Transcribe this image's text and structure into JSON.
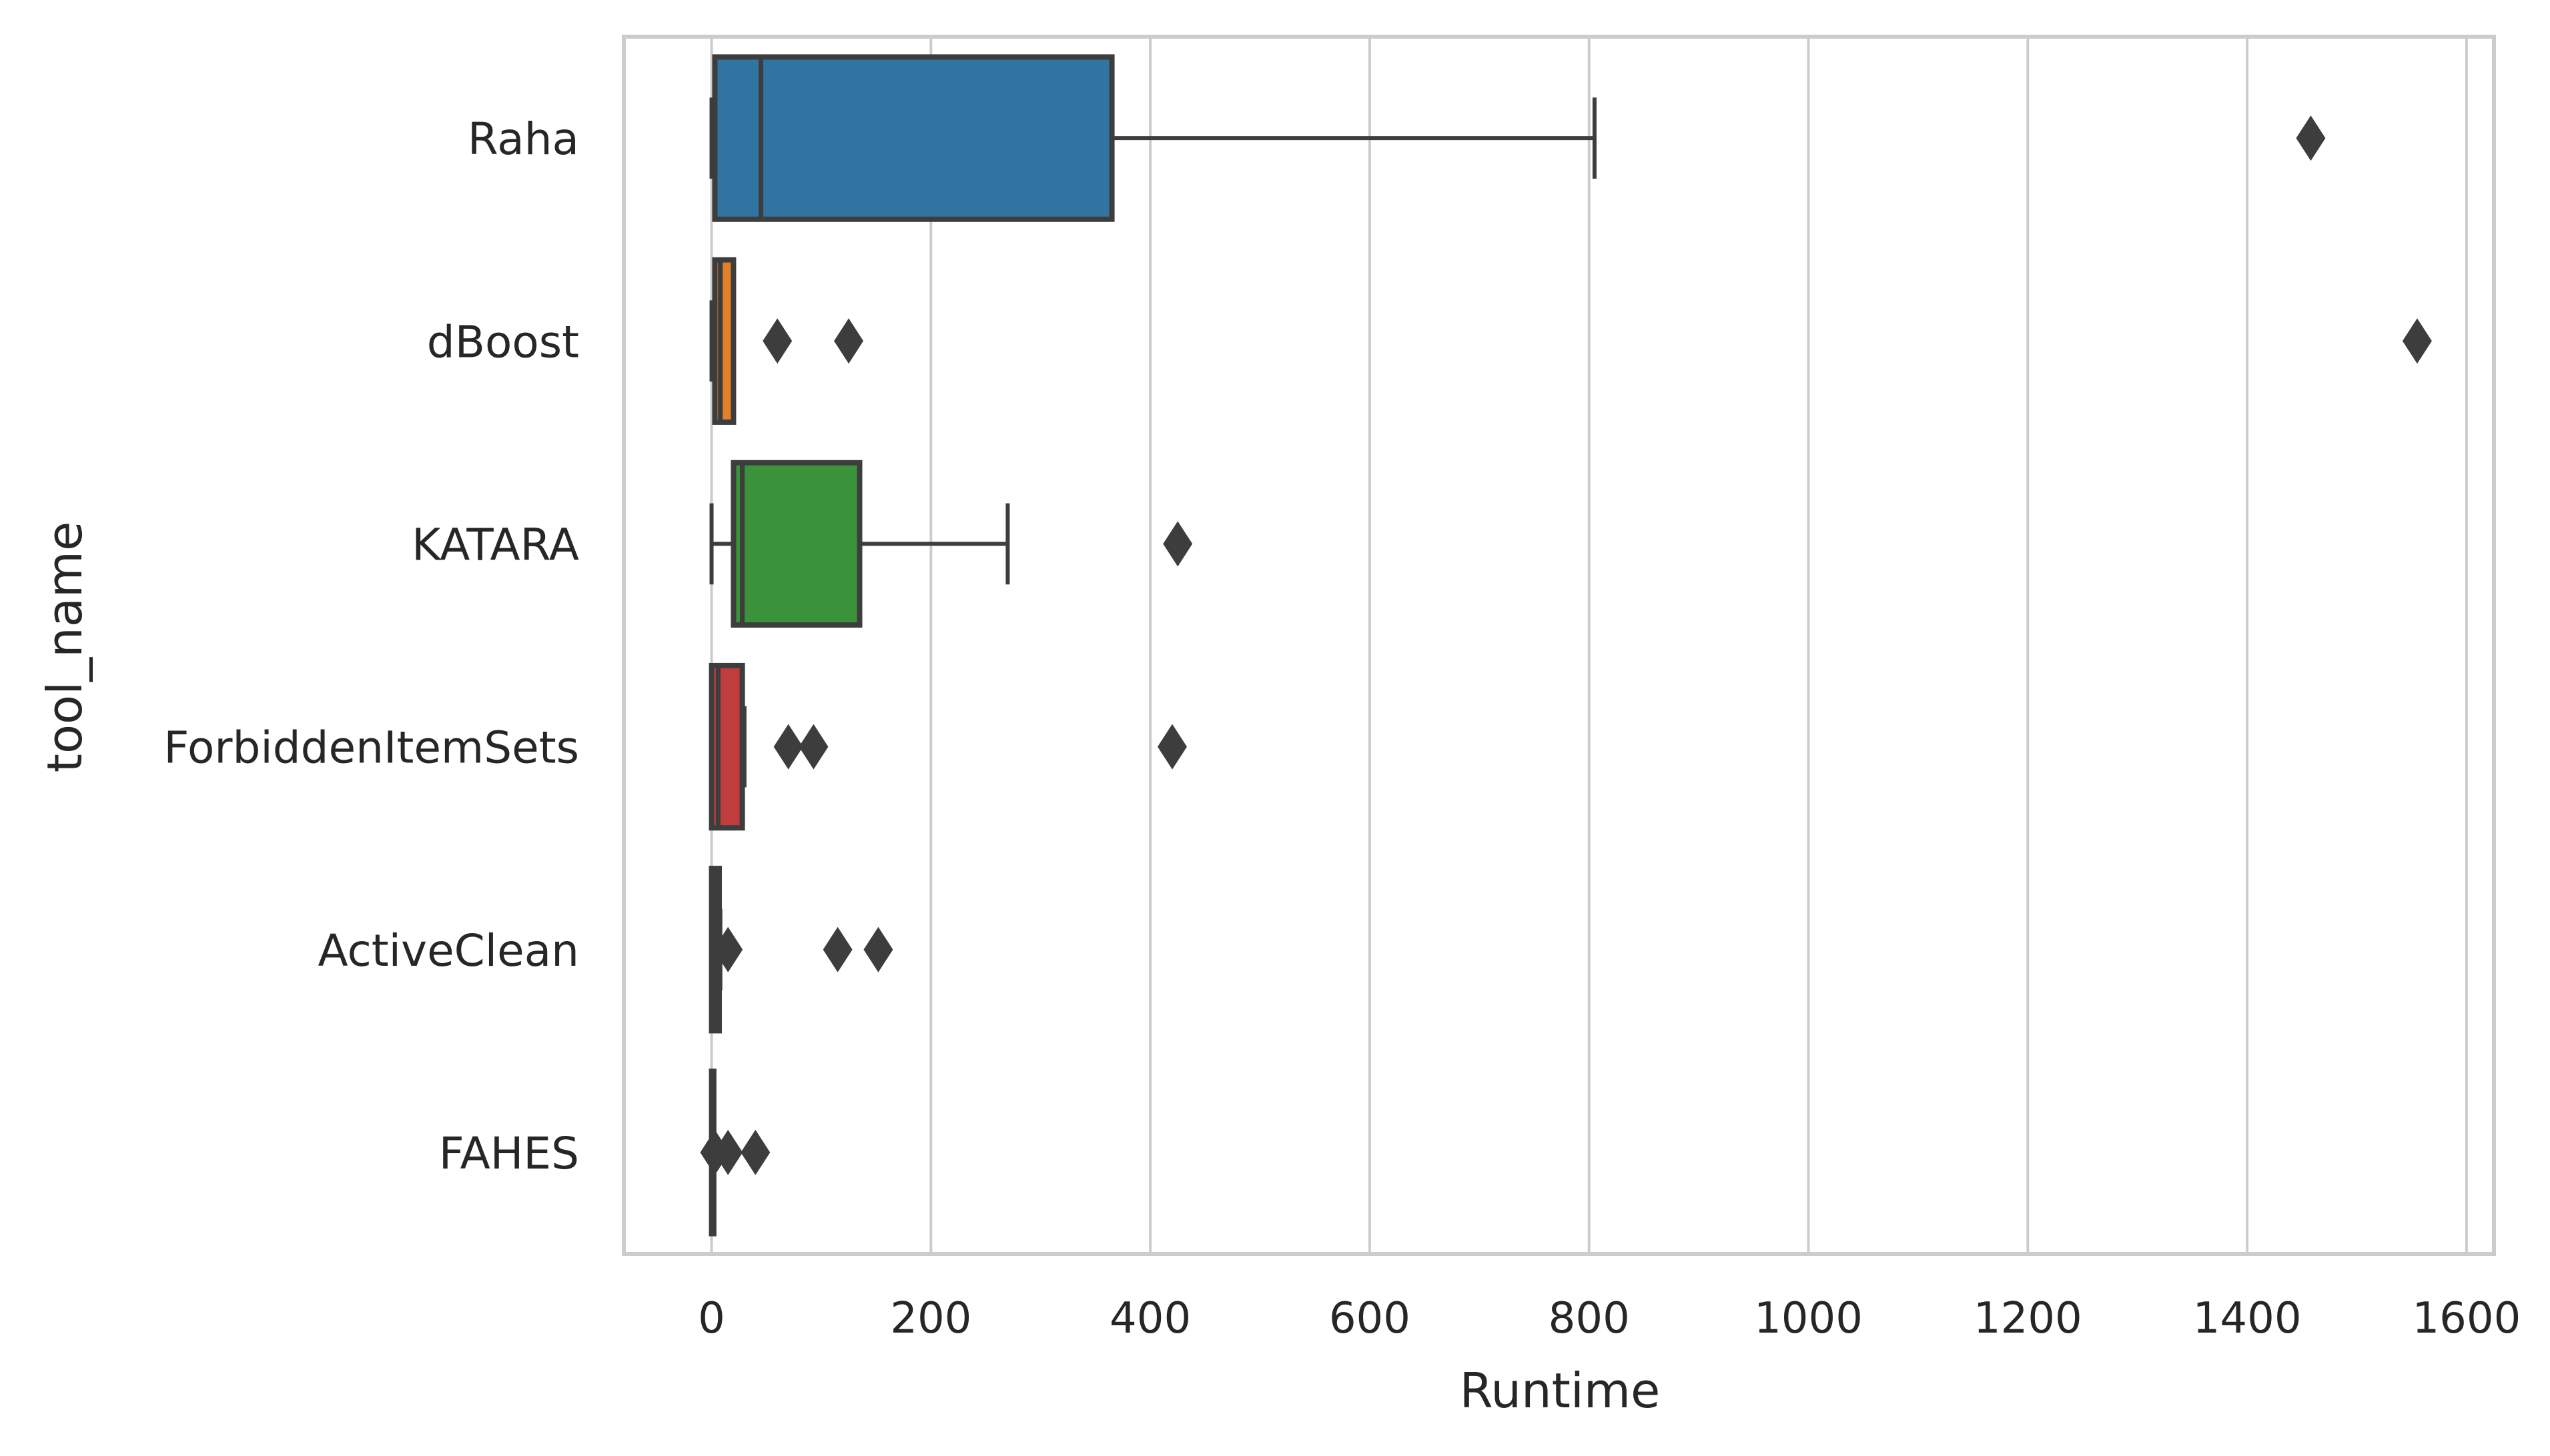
{
  "chart_data": {
    "type": "boxplot",
    "orientation": "horizontal",
    "xlabel": "Runtime",
    "ylabel": "tool_name",
    "xlim": [
      -80,
      1625
    ],
    "xticks": [
      0,
      200,
      400,
      600,
      800,
      1000,
      1200,
      1400,
      1600
    ],
    "grid": "vertical",
    "categories": [
      "Raha",
      "dBoost",
      "KATARA",
      "ForbiddenItemSets",
      "ActiveClean",
      "FAHES"
    ],
    "boxes": [
      {
        "name": "Raha",
        "color": "#3274a1",
        "whisker_low": 0,
        "q1": 3,
        "median": 45,
        "q3": 365,
        "whisker_high": 805,
        "outliers": [
          1458
        ]
      },
      {
        "name": "dBoost",
        "color": "#e1812c",
        "whisker_low": 0,
        "q1": 3,
        "median": 8,
        "q3": 20,
        "whisker_high": 20,
        "outliers": [
          60,
          125,
          1555
        ]
      },
      {
        "name": "KATARA",
        "color": "#3a923a",
        "whisker_low": 0,
        "q1": 20,
        "median": 28,
        "q3": 135,
        "whisker_high": 270,
        "outliers": [
          425
        ]
      },
      {
        "name": "ForbiddenItemSets",
        "color": "#c03d3e",
        "whisker_low": 0,
        "q1": 0,
        "median": 6,
        "q3": 28,
        "whisker_high": 30,
        "outliers": [
          70,
          93,
          420
        ]
      },
      {
        "name": "ActiveClean",
        "color": "#9372b2",
        "whisker_low": 0,
        "q1": 0,
        "median": 3,
        "q3": 7,
        "whisker_high": 8,
        "outliers": [
          15,
          115,
          152
        ]
      },
      {
        "name": "FAHES",
        "color": "#845b53",
        "whisker_low": 0,
        "q1": 0,
        "median": 1,
        "q3": 2,
        "whisker_high": 2,
        "outliers": [
          3,
          15,
          40
        ]
      }
    ],
    "colors": {
      "grid": "#cccccc",
      "frame": "#cccccc",
      "box_edge": "#3d3d3d",
      "outlier": "#3d3d3d"
    }
  }
}
